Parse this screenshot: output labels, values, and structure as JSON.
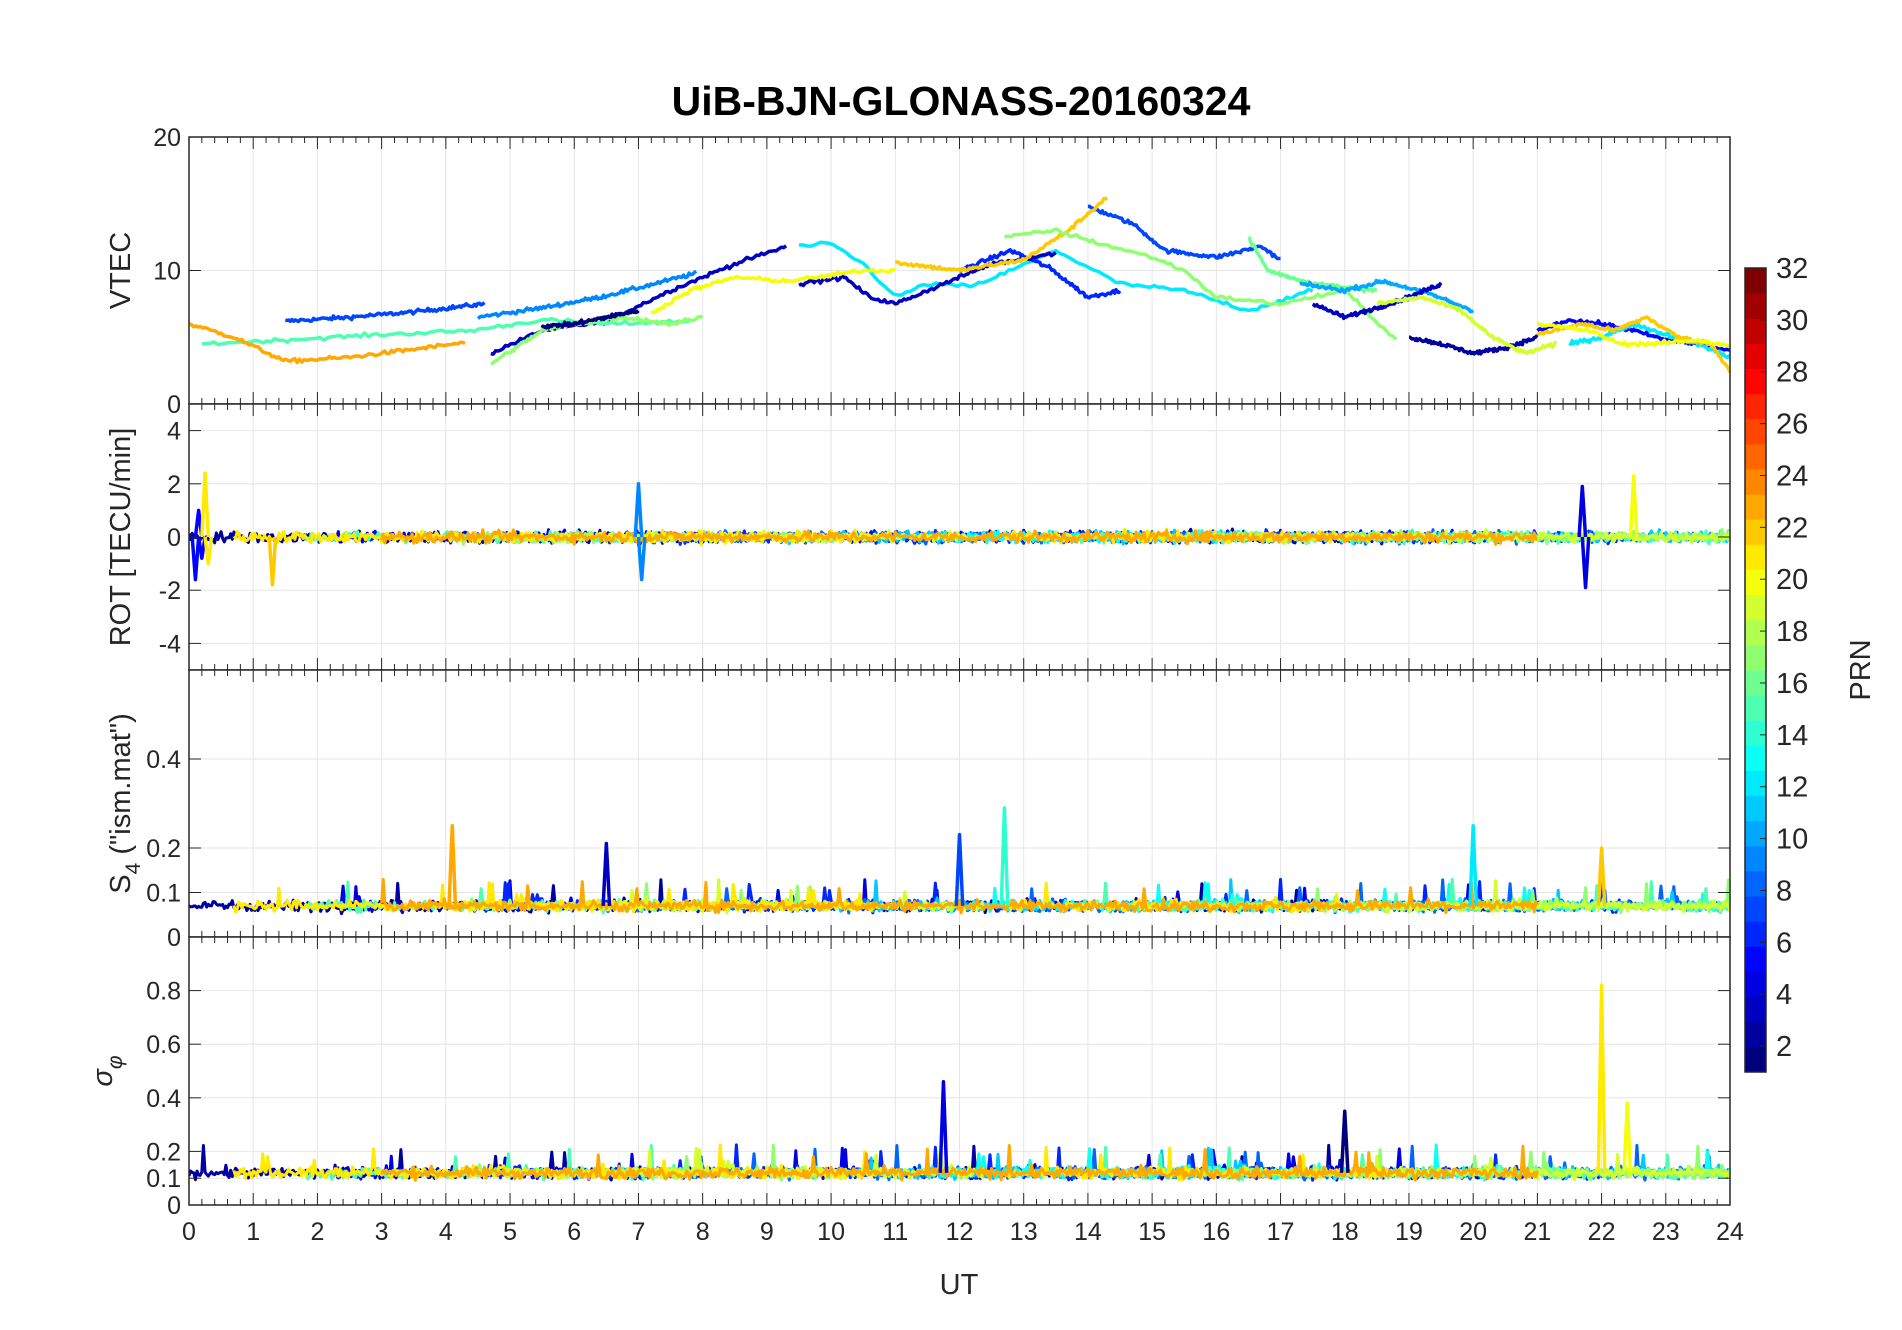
{
  "chart_data": {
    "type": "line",
    "title": "UiB-BJN-GLONASS-20160324",
    "xlabel": "UT",
    "xlim": [
      0,
      24
    ],
    "xticks": [
      "0",
      "1",
      "2",
      "3",
      "4",
      "5",
      "6",
      "7",
      "8",
      "9",
      "10",
      "11",
      "12",
      "13",
      "14",
      "15",
      "16",
      "17",
      "18",
      "19",
      "20",
      "21",
      "22",
      "23",
      "24"
    ],
    "colorbar": {
      "label": "PRN",
      "limits": [
        1,
        32
      ],
      "ticks": [
        "2",
        "4",
        "6",
        "8",
        "10",
        "12",
        "14",
        "16",
        "18",
        "20",
        "22",
        "24",
        "26",
        "28",
        "30",
        "32"
      ],
      "colormap": "jet",
      "colormap_stops": [
        "#00007f",
        "#0000ff",
        "#007fff",
        "#00ffff",
        "#7fff7f",
        "#ffff00",
        "#ff7f00",
        "#ff0000",
        "#7f0000"
      ]
    },
    "panels": [
      {
        "ylabel": "VTEC",
        "ylim": [
          0,
          20
        ],
        "yticks": [
          "0",
          "10",
          "20"
        ],
        "series": [
          {
            "prn": 7,
            "x": [
              1.5,
              2.5,
              3.5,
              4.6
            ],
            "y": [
              6.2,
              6.5,
              6.9,
              7.5
            ]
          },
          {
            "prn": 3,
            "x": [
              4.7,
              5.5,
              6.5,
              7.5,
              8.5,
              9.3
            ],
            "y": [
              3.8,
              5.5,
              6.2,
              8.5,
              10.5,
              11.8
            ]
          },
          {
            "prn": 9,
            "x": [
              4.5,
              5.5,
              6.4,
              7.0,
              7.9
            ],
            "y": [
              6.5,
              7.2,
              8.0,
              8.7,
              9.8
            ]
          },
          {
            "prn": 15,
            "x": [
              0.2,
              1.5,
              3.0,
              4.4,
              5.5,
              6.5,
              7.8
            ],
            "y": [
              4.5,
              4.8,
              5.2,
              5.5,
              6.3,
              6.0,
              6.2
            ]
          },
          {
            "prn": 23,
            "x": [
              0.0,
              0.7,
              1.5,
              2.5,
              3.5,
              4.3
            ],
            "y": [
              6.0,
              5.0,
              3.2,
              3.5,
              4.1,
              4.6
            ]
          },
          {
            "prn": 12,
            "x": [
              9.5,
              10.0,
              10.5,
              11.0,
              11.5,
              12.2,
              12.8,
              13.5,
              14.5,
              15.5,
              16.5,
              17.5
            ],
            "y": [
              11.8,
              12.0,
              10.5,
              8.0,
              9.0,
              8.8,
              10.0,
              11.5,
              9.0,
              8.5,
              7.0,
              8.5
            ]
          },
          {
            "prn": 7,
            "x": [
              14.0,
              14.7,
              15.2,
              16.0,
              16.7,
              17.0
            ],
            "y": [
              14.8,
              13.5,
              11.5,
              11.0,
              11.8,
              10.8
            ]
          },
          {
            "prn": 6,
            "x": [
              12.0,
              12.8,
              13.4,
              14.0,
              14.5
            ],
            "y": [
              10.0,
              11.5,
              10.2,
              8.0,
              8.5
            ]
          },
          {
            "prn": 3,
            "x": [
              9.5,
              10.2,
              10.6,
              11.0,
              11.5,
              12.5,
              13.5
            ],
            "y": [
              9.0,
              9.5,
              8.0,
              7.5,
              8.5,
              10.5,
              11.3
            ]
          },
          {
            "prn": 22,
            "x": [
              11.0,
              12.0,
              13.0,
              13.7,
              14.3
            ],
            "y": [
              10.6,
              10.0,
              10.8,
              13.0,
              15.5
            ]
          },
          {
            "prn": 17,
            "x": [
              12.7,
              13.5,
              14.2,
              15.0,
              15.5,
              16.0,
              17.0,
              18.0,
              18.8
            ],
            "y": [
              12.5,
              13.0,
              12.0,
              11.0,
              10.0,
              8.0,
              7.5,
              8.5,
              4.8
            ]
          },
          {
            "prn": 16,
            "x": [
              16.5,
              16.8,
              17.5,
              18.5
            ],
            "y": [
              12.5,
              10.0,
              9.0,
              8.5
            ]
          },
          {
            "prn": 10,
            "x": [
              17.3,
              18.0,
              18.6,
              19.3,
              20.0
            ],
            "y": [
              9.0,
              8.5,
              9.2,
              8.3,
              7.0
            ]
          },
          {
            "prn": 3,
            "x": [
              17.5,
              18.0,
              18.5,
              19.0,
              19.5
            ],
            "y": [
              7.5,
              6.5,
              7.2,
              8.0,
              9.0
            ]
          },
          {
            "prn": 2,
            "x": [
              19.0,
              19.5,
              20.0,
              20.5,
              21.0
            ],
            "y": [
              5.0,
              4.5,
              3.8,
              4.2,
              5.0
            ]
          },
          {
            "prn": 19,
            "x": [
              18.5,
              19.2,
              19.8,
              20.3,
              20.8,
              21.3
            ],
            "y": [
              7.5,
              8.0,
              7.0,
              5.0,
              3.8,
              4.5
            ]
          },
          {
            "prn": 5,
            "x": [
              21.0,
              21.5,
              22.0,
              22.5,
              23.0,
              23.5,
              24.0
            ],
            "y": [
              5.5,
              6.3,
              6.0,
              5.5,
              4.8,
              4.5,
              4.0
            ]
          },
          {
            "prn": 12,
            "x": [
              21.5,
              22.0,
              22.5,
              23.0,
              23.5,
              24.0
            ],
            "y": [
              4.5,
              5.0,
              6.0,
              5.2,
              4.5,
              3.5
            ]
          },
          {
            "prn": 22,
            "x": [
              21.0,
              21.7,
              22.2,
              22.7,
              23.2,
              23.7,
              24.0
            ],
            "y": [
              5.2,
              6.0,
              5.5,
              6.5,
              5.0,
              4.5,
              2.5
            ]
          },
          {
            "prn": 20,
            "x": [
              21.0,
              21.8,
              22.3,
              22.8,
              23.5,
              24.0
            ],
            "y": [
              6.0,
              5.5,
              4.5,
              4.5,
              4.8,
              4.3
            ]
          },
          {
            "prn": 17,
            "x": [
              4.7,
              5.5,
              6.0,
              6.8,
              7.5,
              8.0
            ],
            "y": [
              3.0,
              5.5,
              6.0,
              6.5,
              6.0,
              6.5
            ]
          },
          {
            "prn": 20,
            "x": [
              7.2,
              7.8,
              8.5,
              9.3,
              9.8,
              10.5,
              11.0
            ],
            "y": [
              6.8,
              8.5,
              9.5,
              9.2,
              9.5,
              10.0,
              10.0
            ]
          },
          {
            "prn": 1,
            "x": [
              5.5,
              6.0,
              6.5,
              7.0
            ],
            "y": [
              5.8,
              6.0,
              6.5,
              7.0
            ]
          }
        ]
      },
      {
        "ylabel": "ROT [TECU/min]",
        "ylim": [
          -5,
          5
        ],
        "yticks": [
          "-4",
          "-2",
          "0",
          "2",
          "4"
        ],
        "note": "noisy traces around 0 with spikes",
        "series": [
          {
            "prn": 5,
            "x": [
              0.1,
              0.15,
              0.2
            ],
            "y": [
              -1.6,
              1.0,
              -0.8
            ]
          },
          {
            "prn": 21,
            "x": [
              0.25,
              0.3
            ],
            "y": [
              2.4,
              -1.0
            ]
          },
          {
            "prn": 22,
            "x": [
              1.3
            ],
            "y": [
              -1.8
            ]
          },
          {
            "prn": 9,
            "x": [
              7.0,
              7.05
            ],
            "y": [
              2.0,
              -1.6
            ]
          },
          {
            "prn": 4,
            "x": [
              21.7,
              21.75
            ],
            "y": [
              1.9,
              -1.9
            ]
          },
          {
            "prn": 20,
            "x": [
              22.5
            ],
            "y": [
              2.3
            ]
          }
        ]
      },
      {
        "ylabel": "S_4 (\"ism.mat\")",
        "ylabel_main": "S",
        "ylabel_sub": "4",
        "ylabel_rest": " (\"ism.mat\")",
        "ylim": [
          0,
          0.6
        ],
        "yticks": [
          "0",
          "0.1",
          "0.2",
          "0.4"
        ],
        "note": "baseline ~0.05-0.1 with spikes",
        "series": [
          {
            "prn": 23,
            "x": [
              4.1
            ],
            "y": [
              0.25
            ]
          },
          {
            "prn": 14,
            "x": [
              12.7
            ],
            "y": [
              0.29
            ]
          },
          {
            "prn": 12,
            "x": [
              20.0
            ],
            "y": [
              0.25
            ]
          },
          {
            "prn": 7,
            "x": [
              12.0
            ],
            "y": [
              0.23
            ]
          },
          {
            "prn": 3,
            "x": [
              6.5
            ],
            "y": [
              0.21
            ]
          },
          {
            "prn": 22,
            "x": [
              22.0
            ],
            "y": [
              0.2
            ]
          }
        ]
      },
      {
        "ylabel": "σ_φ",
        "ylabel_main": "σ",
        "ylabel_sub": "φ",
        "ylim": [
          0,
          1
        ],
        "yticks": [
          "0",
          "0.1",
          "0.2",
          "0.4",
          "0.6",
          "0.8"
        ],
        "note": "baseline ~0.1-0.2 with spikes",
        "series": [
          {
            "prn": 21,
            "x": [
              22.0
            ],
            "y": [
              0.82
            ]
          },
          {
            "prn": 4,
            "x": [
              11.75
            ],
            "y": [
              0.46
            ]
          },
          {
            "prn": 1,
            "x": [
              18.0
            ],
            "y": [
              0.35
            ]
          },
          {
            "prn": 20,
            "x": [
              22.4
            ],
            "y": [
              0.38
            ]
          }
        ]
      }
    ]
  }
}
